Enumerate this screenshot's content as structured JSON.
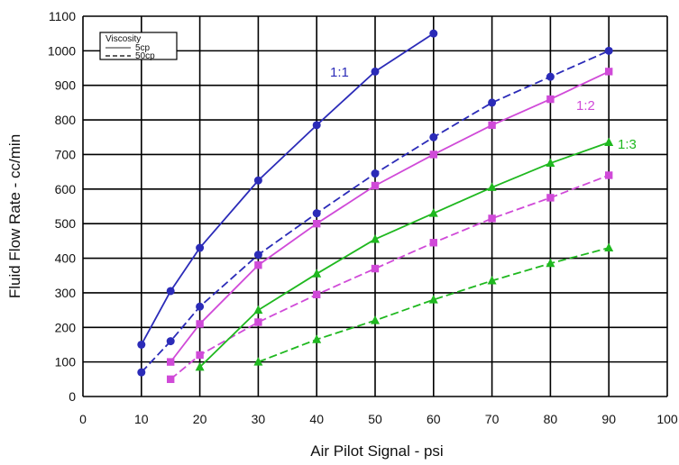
{
  "chart_data": {
    "type": "line",
    "title": "",
    "xlabel": "Air Pilot Signal - psi",
    "ylabel": "Fluid Flow Rate - cc/min",
    "xlim": [
      0,
      100
    ],
    "ylim": [
      0,
      1100
    ],
    "x_ticks": [
      "0",
      "10",
      "20",
      "30",
      "40",
      "50",
      "60",
      "70",
      "80",
      "90",
      "100"
    ],
    "y_ticks": [
      "0",
      "100",
      "200",
      "300",
      "400",
      "500",
      "600",
      "700",
      "800",
      "900",
      "1000",
      "1100"
    ],
    "grid": true,
    "legend": {
      "title": "Viscosity",
      "placement": "top-left",
      "entries": [
        {
          "label": "5cp",
          "style": "solid"
        },
        {
          "label": "50cp",
          "style": "dashed"
        }
      ]
    },
    "colors": {
      "1:1": "#2b2bb8",
      "1:2": "#d04ad8",
      "1:3": "#1fb81f",
      "grid": "#000000"
    },
    "ratio_labels": [
      {
        "text": "1:1",
        "ratio": "1:1"
      },
      {
        "text": "1:2",
        "ratio": "1:2"
      },
      {
        "text": "1:3",
        "ratio": "1:3"
      }
    ],
    "series": [
      {
        "ratio": "1:1",
        "style": "solid",
        "marker": "circle",
        "x": [
          10,
          15,
          20,
          30,
          40,
          50,
          60
        ],
        "y": [
          150,
          305,
          430,
          625,
          785,
          940,
          1050
        ]
      },
      {
        "ratio": "1:1",
        "style": "dashed",
        "marker": "circle",
        "x": [
          10,
          15,
          20,
          30,
          40,
          50,
          60,
          70,
          80,
          90
        ],
        "y": [
          70,
          160,
          260,
          410,
          530,
          645,
          750,
          850,
          925,
          1000
        ]
      },
      {
        "ratio": "1:2",
        "style": "solid",
        "marker": "square",
        "x": [
          15,
          20,
          30,
          40,
          50,
          60,
          70,
          80,
          90
        ],
        "y": [
          100,
          210,
          380,
          500,
          610,
          700,
          785,
          860,
          940
        ]
      },
      {
        "ratio": "1:2",
        "style": "dashed",
        "marker": "square",
        "x": [
          15,
          20,
          30,
          40,
          50,
          60,
          70,
          80,
          90
        ],
        "y": [
          50,
          120,
          215,
          295,
          370,
          445,
          515,
          575,
          640
        ]
      },
      {
        "ratio": "1:3",
        "style": "solid",
        "marker": "triangle",
        "x": [
          20,
          30,
          40,
          50,
          60,
          70,
          80,
          90
        ],
        "y": [
          85,
          250,
          355,
          455,
          530,
          605,
          675,
          735
        ]
      },
      {
        "ratio": "1:3",
        "style": "dashed",
        "marker": "triangle",
        "x": [
          30,
          40,
          50,
          60,
          70,
          80,
          90
        ],
        "y": [
          100,
          165,
          220,
          280,
          335,
          385,
          430
        ]
      }
    ]
  }
}
